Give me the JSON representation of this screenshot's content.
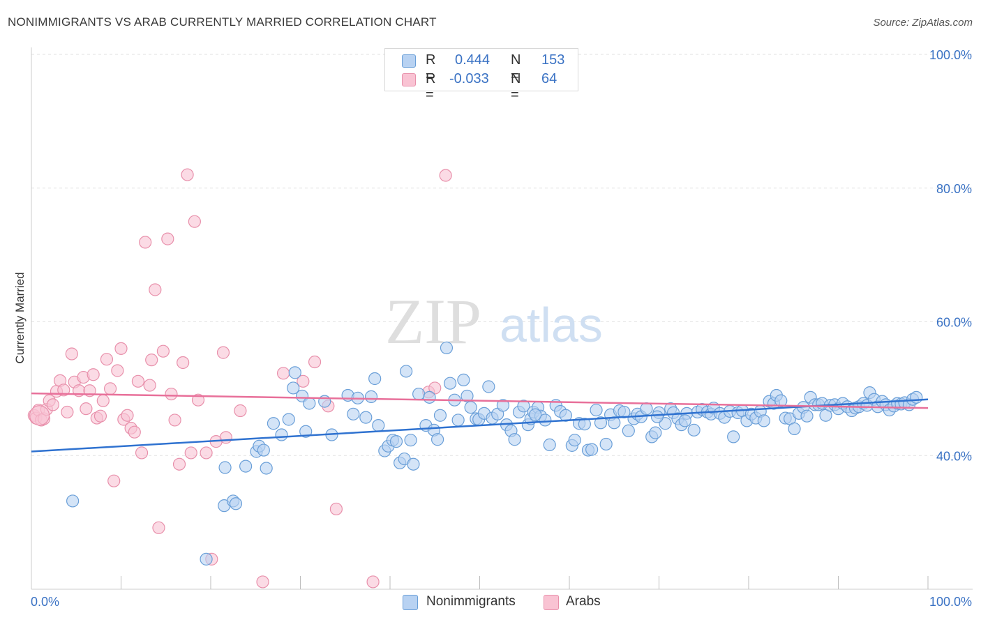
{
  "title": "NONIMMIGRANTS VS ARAB CURRENTLY MARRIED CORRELATION CHART",
  "source": "Source: ZipAtlas.com",
  "watermark": {
    "zip": "ZIP",
    "atlas": "atlas"
  },
  "legend": {
    "series1": {
      "r_label": "R =",
      "r_value": "0.444",
      "n_label": "N =",
      "n_value": "153"
    },
    "series2": {
      "r_label": "R =",
      "r_value": "-0.033",
      "n_label": "N =",
      "n_value": "64"
    }
  },
  "colors": {
    "blue_fill": "#b8d2f2",
    "blue_stroke": "#6a9fd8",
    "blue_line": "#2f72d0",
    "pink_fill": "#f9c3d3",
    "pink_stroke": "#e890ab",
    "pink_line": "#e8709a"
  },
  "chart_data": {
    "type": "scatter",
    "title": "NONIMMIGRANTS VS ARAB CURRENTLY MARRIED CORRELATION CHART",
    "xlabel": "",
    "ylabel": "Currently Married",
    "xlim": [
      0,
      100
    ],
    "ylim": [
      20,
      100
    ],
    "x_tick_labels": [
      "0.0%",
      "100.0%"
    ],
    "y_ticks": [
      40,
      60,
      80,
      100
    ],
    "y_tick_labels": [
      "40.0%",
      "60.0%",
      "80.0%",
      "100.0%"
    ],
    "legend": [
      "Nonimmigrants",
      "Arabs"
    ],
    "series": [
      {
        "name": "Nonimmigrants",
        "trend": {
          "x": [
            0,
            100
          ],
          "y": [
            40.6,
            48.4
          ]
        },
        "points": [
          [
            4.6,
            33.2
          ],
          [
            19.5,
            24.5
          ],
          [
            21.5,
            32.5
          ],
          [
            21.6,
            38.2
          ],
          [
            22.5,
            33.2
          ],
          [
            22.8,
            32.8
          ],
          [
            23.9,
            38.4
          ],
          [
            25.1,
            40.6
          ],
          [
            25.4,
            41.4
          ],
          [
            25.9,
            40.8
          ],
          [
            26.2,
            38.1
          ],
          [
            27.0,
            44.8
          ],
          [
            27.9,
            43.1
          ],
          [
            28.7,
            45.4
          ],
          [
            29.2,
            50.1
          ],
          [
            29.4,
            52.4
          ],
          [
            30.2,
            48.9
          ],
          [
            30.6,
            43.6
          ],
          [
            31.0,
            47.8
          ],
          [
            32.7,
            48.1
          ],
          [
            33.5,
            43.1
          ],
          [
            35.3,
            49.0
          ],
          [
            35.9,
            46.2
          ],
          [
            36.4,
            48.6
          ],
          [
            37.3,
            45.7
          ],
          [
            37.9,
            48.8
          ],
          [
            38.3,
            51.5
          ],
          [
            38.7,
            44.5
          ],
          [
            39.4,
            40.7
          ],
          [
            39.8,
            41.4
          ],
          [
            40.3,
            42.3
          ],
          [
            40.7,
            42.1
          ],
          [
            41.1,
            38.9
          ],
          [
            41.6,
            39.5
          ],
          [
            41.8,
            52.6
          ],
          [
            42.3,
            42.3
          ],
          [
            42.6,
            38.7
          ],
          [
            43.2,
            49.2
          ],
          [
            44.0,
            44.5
          ],
          [
            44.4,
            48.7
          ],
          [
            44.9,
            43.8
          ],
          [
            45.3,
            42.4
          ],
          [
            45.6,
            46.0
          ],
          [
            46.3,
            56.1
          ],
          [
            46.7,
            50.8
          ],
          [
            47.2,
            48.3
          ],
          [
            47.6,
            45.3
          ],
          [
            48.2,
            51.3
          ],
          [
            48.6,
            48.9
          ],
          [
            49.0,
            47.2
          ],
          [
            49.6,
            45.5
          ],
          [
            49.9,
            45.4
          ],
          [
            50.5,
            46.3
          ],
          [
            51.0,
            50.3
          ],
          [
            51.4,
            45.6
          ],
          [
            52.0,
            46.2
          ],
          [
            52.6,
            47.5
          ],
          [
            53.0,
            44.6
          ],
          [
            53.5,
            43.7
          ],
          [
            53.9,
            42.4
          ],
          [
            54.4,
            46.5
          ],
          [
            54.9,
            47.4
          ],
          [
            55.4,
            44.6
          ],
          [
            55.7,
            45.5
          ],
          [
            56.0,
            46.5
          ],
          [
            56.5,
            47.2
          ],
          [
            56.8,
            45.9
          ],
          [
            57.3,
            45.3
          ],
          [
            57.8,
            41.6
          ],
          [
            58.5,
            47.5
          ],
          [
            59.0,
            46.6
          ],
          [
            59.6,
            46.0
          ],
          [
            60.3,
            41.5
          ],
          [
            60.6,
            42.3
          ],
          [
            61.1,
            44.8
          ],
          [
            61.7,
            44.7
          ],
          [
            62.1,
            40.8
          ],
          [
            62.5,
            40.9
          ],
          [
            63.0,
            46.8
          ],
          [
            63.5,
            44.9
          ],
          [
            64.1,
            41.7
          ],
          [
            64.6,
            46.1
          ],
          [
            65.0,
            44.9
          ],
          [
            65.6,
            46.7
          ],
          [
            66.1,
            46.5
          ],
          [
            66.6,
            43.7
          ],
          [
            67.2,
            45.5
          ],
          [
            67.6,
            46.2
          ],
          [
            68.0,
            45.8
          ],
          [
            68.6,
            47.0
          ],
          [
            69.2,
            42.8
          ],
          [
            69.6,
            43.4
          ],
          [
            70.0,
            46.4
          ],
          [
            70.7,
            44.8
          ],
          [
            71.3,
            47.0
          ],
          [
            71.6,
            46.4
          ],
          [
            72.1,
            45.5
          ],
          [
            72.5,
            44.6
          ],
          [
            73.1,
            46.3
          ],
          [
            73.9,
            43.8
          ],
          [
            74.3,
            46.5
          ],
          [
            74.8,
            46.9
          ],
          [
            75.4,
            46.5
          ],
          [
            75.8,
            46.2
          ],
          [
            76.1,
            47.1
          ],
          [
            76.8,
            46.3
          ],
          [
            77.3,
            45.7
          ],
          [
            77.9,
            46.6
          ],
          [
            78.3,
            42.8
          ],
          [
            78.8,
            46.4
          ],
          [
            79.3,
            46.7
          ],
          [
            79.8,
            45.2
          ],
          [
            80.3,
            46.2
          ],
          [
            80.8,
            45.6
          ],
          [
            81.3,
            46.6
          ],
          [
            81.7,
            45.2
          ],
          [
            82.3,
            48.1
          ],
          [
            82.8,
            47.8
          ],
          [
            83.1,
            49.0
          ],
          [
            83.6,
            48.2
          ],
          [
            84.1,
            45.6
          ],
          [
            84.6,
            45.5
          ],
          [
            85.1,
            44.0
          ],
          [
            85.6,
            46.3
          ],
          [
            86.1,
            47.2
          ],
          [
            86.5,
            45.9
          ],
          [
            86.9,
            48.7
          ],
          [
            87.4,
            47.6
          ],
          [
            87.8,
            47.6
          ],
          [
            88.2,
            47.8
          ],
          [
            88.6,
            46.0
          ],
          [
            89.1,
            47.5
          ],
          [
            89.6,
            47.6
          ],
          [
            90.0,
            47.0
          ],
          [
            90.5,
            47.8
          ],
          [
            91.0,
            47.3
          ],
          [
            91.5,
            46.7
          ],
          [
            91.9,
            47.1
          ],
          [
            92.3,
            47.3
          ],
          [
            92.8,
            47.8
          ],
          [
            93.2,
            47.5
          ],
          [
            93.5,
            49.4
          ],
          [
            94.0,
            48.4
          ],
          [
            94.4,
            47.3
          ],
          [
            94.9,
            48.1
          ],
          [
            95.3,
            47.6
          ],
          [
            95.7,
            46.8
          ],
          [
            96.2,
            47.4
          ],
          [
            96.6,
            47.8
          ],
          [
            97.0,
            47.7
          ],
          [
            97.4,
            47.9
          ],
          [
            97.9,
            47.6
          ],
          [
            98.3,
            48.4
          ],
          [
            98.7,
            48.7
          ],
          [
            56.2,
            46.1
          ],
          [
            69.8,
            45.8
          ],
          [
            72.9,
            45.2
          ]
        ]
      },
      {
        "name": "Arabs",
        "trend": {
          "x": [
            0,
            100
          ],
          "y": [
            49.3,
            47.1
          ]
        },
        "points": [
          [
            0.3,
            46.0
          ],
          [
            0.5,
            45.6
          ],
          [
            0.8,
            46.8
          ],
          [
            1.1,
            45.3
          ],
          [
            1.4,
            45.5
          ],
          [
            1.7,
            46.9
          ],
          [
            2.0,
            48.2
          ],
          [
            2.4,
            47.6
          ],
          [
            2.8,
            49.6
          ],
          [
            3.2,
            51.2
          ],
          [
            3.6,
            49.8
          ],
          [
            4.0,
            46.5
          ],
          [
            4.5,
            55.2
          ],
          [
            4.8,
            51.0
          ],
          [
            5.3,
            49.7
          ],
          [
            5.8,
            51.7
          ],
          [
            6.1,
            47.0
          ],
          [
            6.5,
            49.7
          ],
          [
            6.9,
            52.1
          ],
          [
            7.3,
            45.6
          ],
          [
            7.7,
            45.9
          ],
          [
            8.0,
            48.2
          ],
          [
            8.4,
            54.4
          ],
          [
            8.8,
            50.0
          ],
          [
            9.2,
            36.2
          ],
          [
            9.6,
            52.7
          ],
          [
            10.0,
            56.0
          ],
          [
            10.3,
            45.4
          ],
          [
            10.7,
            46.0
          ],
          [
            11.1,
            44.1
          ],
          [
            11.5,
            43.5
          ],
          [
            11.9,
            51.1
          ],
          [
            12.3,
            40.4
          ],
          [
            12.7,
            71.9
          ],
          [
            13.2,
            50.5
          ],
          [
            13.4,
            54.3
          ],
          [
            13.8,
            64.8
          ],
          [
            14.2,
            29.2
          ],
          [
            14.7,
            55.6
          ],
          [
            15.2,
            72.4
          ],
          [
            15.6,
            49.2
          ],
          [
            16.0,
            45.3
          ],
          [
            16.5,
            38.7
          ],
          [
            16.9,
            53.9
          ],
          [
            17.4,
            82.0
          ],
          [
            17.8,
            40.4
          ],
          [
            18.2,
            75.0
          ],
          [
            18.6,
            48.3
          ],
          [
            19.5,
            40.4
          ],
          [
            20.1,
            24.5
          ],
          [
            20.6,
            42.1
          ],
          [
            21.4,
            55.4
          ],
          [
            21.7,
            42.7
          ],
          [
            23.3,
            46.7
          ],
          [
            25.8,
            21.1
          ],
          [
            28.1,
            52.3
          ],
          [
            30.3,
            51.1
          ],
          [
            31.6,
            54.0
          ],
          [
            33.1,
            47.4
          ],
          [
            34.0,
            32.0
          ],
          [
            38.1,
            21.1
          ],
          [
            44.3,
            49.5
          ],
          [
            45.0,
            50.1
          ],
          [
            46.2,
            81.9
          ]
        ]
      }
    ]
  },
  "bottom_legend": {
    "blue": "Nonimmigrants",
    "pink": "Arabs"
  }
}
